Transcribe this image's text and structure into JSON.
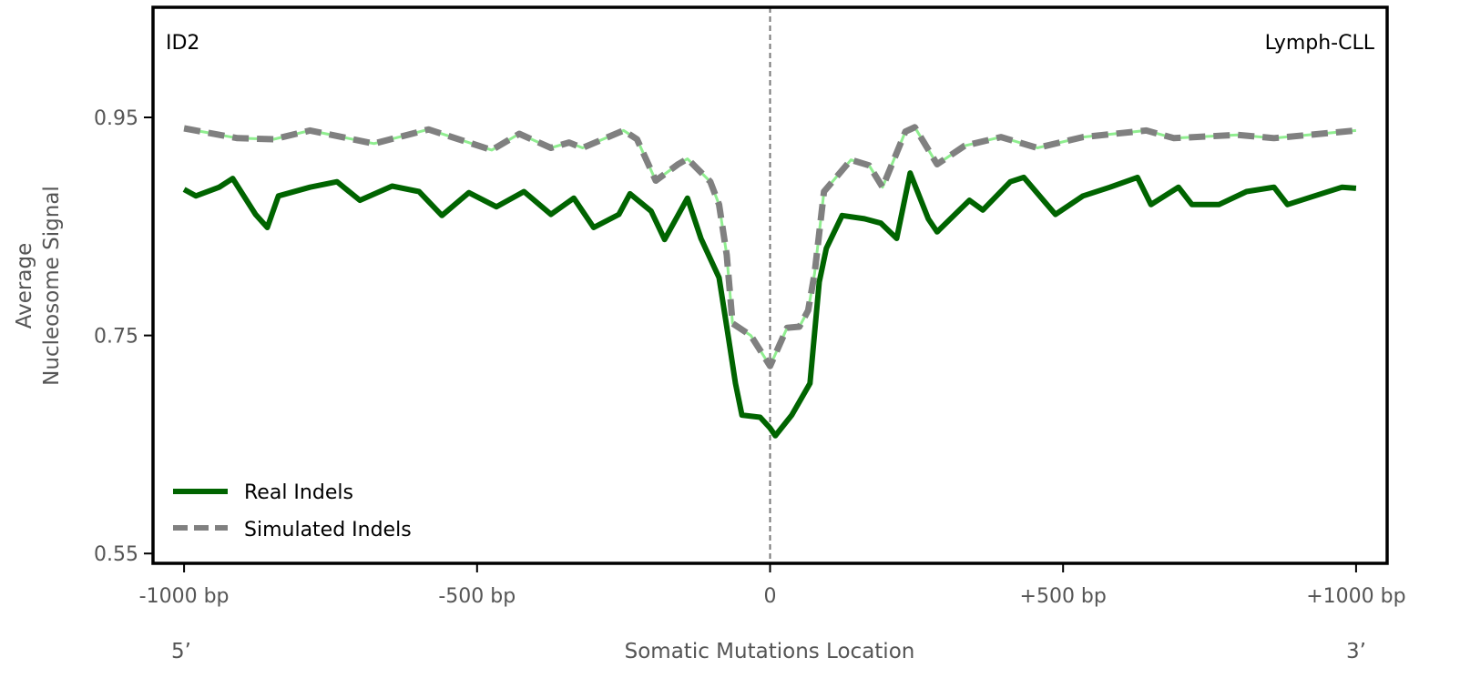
{
  "chart_data": {
    "type": "line",
    "title": "",
    "annotations": {
      "left": "ID2",
      "right": "Lymph-CLL"
    },
    "xlabel": "Somatic Mutations Location",
    "xlabel_ends": {
      "left": "5’",
      "right": "3’"
    },
    "ylabel": [
      "Average",
      "Nucleosome Signal"
    ],
    "xlim": [
      -1053,
      1053
    ],
    "ylim": [
      0.541,
      1.051
    ],
    "xticks": [
      -1000,
      -500,
      0,
      500,
      1000
    ],
    "xtick_labels": [
      "-1000 bp",
      "-500 bp",
      "0",
      "+500 bp",
      "+1000 bp"
    ],
    "yticks": [
      0.55,
      0.75,
      0.95
    ],
    "ytick_labels": [
      "0.55",
      "0.75",
      "0.95"
    ],
    "vline_x": 0,
    "legend_position": "lower-left",
    "grid": false,
    "colors": {
      "real": "#006400",
      "simulated_dash": "#808080",
      "simulated_under": "#90ee90",
      "vline": "#777777"
    },
    "series": [
      {
        "name": "Real Indels",
        "style": "solid",
        "x": [
          -1000,
          -980,
          -940,
          -917,
          -878,
          -858,
          -839,
          -785,
          -739,
          -700,
          -645,
          -599,
          -560,
          -514,
          -467,
          -420,
          -374,
          -335,
          -301,
          -258,
          -239,
          -203,
          -180,
          -141,
          -118,
          -87,
          -71,
          -59,
          -48,
          -17,
          0,
          9,
          37,
          68,
          84,
          96,
          123,
          161,
          189,
          216,
          239,
          270,
          285,
          340,
          363,
          410,
          433,
          487,
          534,
          580,
          627,
          650,
          697,
          720,
          766,
          813,
          860,
          883,
          929,
          976,
          1000
        ],
        "y": [
          0.884,
          0.878,
          0.886,
          0.894,
          0.861,
          0.849,
          0.878,
          0.886,
          0.891,
          0.874,
          0.887,
          0.882,
          0.86,
          0.881,
          0.868,
          0.882,
          0.861,
          0.876,
          0.849,
          0.861,
          0.88,
          0.864,
          0.838,
          0.876,
          0.839,
          0.803,
          0.748,
          0.706,
          0.677,
          0.675,
          0.665,
          0.658,
          0.677,
          0.706,
          0.799,
          0.83,
          0.86,
          0.857,
          0.853,
          0.839,
          0.899,
          0.857,
          0.845,
          0.874,
          0.865,
          0.891,
          0.895,
          0.861,
          0.878,
          0.886,
          0.895,
          0.87,
          0.886,
          0.87,
          0.87,
          0.882,
          0.886,
          0.87,
          0.878,
          0.886,
          0.885
        ]
      },
      {
        "name": "Simulated Indels",
        "style": "dashed",
        "x": [
          -1000,
          -909,
          -847,
          -785,
          -676,
          -583,
          -475,
          -428,
          -374,
          -343,
          -320,
          -250,
          -227,
          -195,
          -157,
          -141,
          -102,
          -87,
          -74,
          -64,
          -33,
          0,
          29,
          50,
          65,
          76,
          92,
          138,
          169,
          192,
          231,
          247,
          285,
          332,
          394,
          456,
          534,
          642,
          689,
          798,
          860,
          1000
        ],
        "y": [
          0.94,
          0.931,
          0.93,
          0.938,
          0.926,
          0.939,
          0.92,
          0.935,
          0.922,
          0.927,
          0.922,
          0.938,
          0.93,
          0.892,
          0.907,
          0.912,
          0.891,
          0.87,
          0.824,
          0.761,
          0.75,
          0.722,
          0.757,
          0.758,
          0.773,
          0.807,
          0.882,
          0.911,
          0.906,
          0.886,
          0.937,
          0.941,
          0.907,
          0.924,
          0.932,
          0.922,
          0.932,
          0.938,
          0.931,
          0.934,
          0.931,
          0.938
        ]
      }
    ]
  }
}
